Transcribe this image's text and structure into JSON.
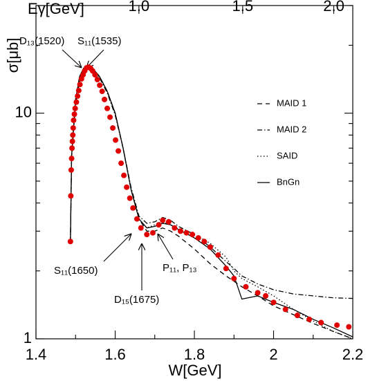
{
  "chart_data": {
    "type": "line",
    "x_label": "W[GeV]",
    "y_label": "σ[μb]",
    "x2_label": "Eγ[GeV]",
    "log_y": true,
    "xlim": [
      1.4,
      2.2
    ],
    "ylim": [
      1,
      30
    ],
    "xticks": [
      1.4,
      1.6,
      1.8,
      2,
      2.2
    ],
    "xminor_ticks": [
      1.5,
      1.7,
      1.9,
      2.1
    ],
    "yticks": [
      1,
      10
    ],
    "yminor_ticks": [
      2,
      3,
      4,
      5,
      6,
      7,
      8,
      9,
      20,
      30
    ],
    "x2ticks": [
      {
        "value": 1.66,
        "label": "1.0"
      },
      {
        "value": 1.922,
        "label": "1.5"
      },
      {
        "value": 2.152,
        "label": "2.0"
      }
    ],
    "x": [
      1.487,
      1.49,
      1.5,
      1.51,
      1.52,
      1.53,
      1.54,
      1.56,
      1.58,
      1.6,
      1.62,
      1.64,
      1.66,
      1.68,
      1.7,
      1.72,
      1.74,
      1.76,
      1.8,
      1.84,
      1.88,
      1.9,
      1.92,
      1.96,
      2.0,
      2.05,
      2.1,
      2.15,
      2.2
    ],
    "series": [
      {
        "name": "MAID 1",
        "style": "dashed",
        "color": "#000000",
        "values": [
          2.7,
          6.5,
          11.5,
          14.5,
          15.8,
          16.3,
          16.0,
          14.6,
          12.5,
          10.0,
          7.0,
          4.6,
          3.4,
          3.0,
          3.0,
          3.1,
          3.0,
          2.85,
          2.5,
          2.15,
          1.9,
          1.8,
          1.7,
          1.55,
          1.4,
          1.28,
          1.17,
          1.08,
          1.0
        ]
      },
      {
        "name": "MAID 2",
        "style": "dashdot",
        "color": "#000000",
        "values": [
          2.7,
          6.3,
          11.0,
          13.8,
          15.0,
          15.6,
          15.5,
          14.4,
          12.3,
          9.8,
          7.0,
          4.7,
          3.5,
          3.25,
          3.3,
          3.45,
          3.35,
          3.15,
          2.9,
          2.55,
          2.2,
          2.05,
          1.9,
          1.75,
          1.65,
          1.58,
          1.55,
          1.52,
          1.51
        ]
      },
      {
        "name": "SAID",
        "style": "dotted",
        "color": "#000000",
        "values": [
          2.7,
          6.5,
          11.5,
          14.5,
          15.8,
          16.3,
          16.0,
          14.6,
          12.5,
          10.0,
          7.0,
          4.6,
          3.4,
          3.1,
          3.2,
          3.3,
          3.2,
          3.05,
          2.9,
          2.65,
          2.3,
          2.0,
          1.85,
          1.7,
          1.55,
          1.35,
          1.2,
          1.08,
          1.0
        ]
      },
      {
        "name": "BnGn",
        "style": "solid",
        "color": "#000000",
        "values": [
          2.7,
          6.5,
          11.5,
          14.5,
          15.8,
          16.3,
          16.0,
          14.6,
          12.5,
          10.0,
          7.0,
          4.6,
          3.4,
          3.1,
          3.15,
          3.25,
          3.2,
          3.05,
          2.8,
          2.5,
          2.1,
          1.9,
          1.5,
          1.55,
          1.45,
          1.35,
          1.22,
          1.12,
          1.02
        ]
      }
    ],
    "points": {
      "color": "#e00000",
      "x": [
        1.487,
        1.488,
        1.489,
        1.49,
        1.491,
        1.492,
        1.493,
        1.494,
        1.495,
        1.497,
        1.499,
        1.502,
        1.505,
        1.508,
        1.511,
        1.515,
        1.519,
        1.523,
        1.528,
        1.533,
        1.538,
        1.543,
        1.549,
        1.555,
        1.561,
        1.567,
        1.573,
        1.58,
        1.587,
        1.594,
        1.601,
        1.608,
        1.615,
        1.622,
        1.629,
        1.637,
        1.645,
        1.655,
        1.665,
        1.68,
        1.695,
        1.71,
        1.72,
        1.735,
        1.75,
        1.765,
        1.78,
        1.795,
        1.81,
        1.825,
        1.84,
        1.86,
        1.88,
        1.9,
        1.93,
        1.96,
        1.98,
        2.0,
        2.03,
        2.06,
        2.09,
        2.12,
        2.16,
        2.19
      ],
      "values": [
        2.7,
        4.3,
        5.6,
        6.3,
        7.0,
        7.5,
        8.0,
        8.6,
        9.3,
        9.9,
        10.5,
        11.2,
        11.9,
        12.6,
        13.4,
        14.2,
        14.8,
        15.4,
        15.9,
        16.0,
        15.8,
        15.4,
        14.8,
        14.1,
        13.3,
        12.5,
        11.5,
        10.5,
        9.6,
        8.6,
        7.6,
        6.8,
        6.0,
        5.3,
        4.7,
        4.2,
        3.8,
        3.4,
        3.1,
        2.9,
        2.95,
        3.2,
        3.35,
        3.3,
        3.1,
        3.0,
        2.95,
        2.9,
        2.8,
        2.7,
        2.55,
        2.35,
        2.05,
        1.85,
        1.7,
        1.6,
        1.55,
        1.45,
        1.35,
        1.27,
        1.22,
        1.18,
        1.15,
        1.13
      ]
    },
    "annotations": [
      "D₁₃(1520)",
      "S₁₁(1535)",
      "S₁₁(1650)",
      "D₁₅(1675)",
      "P₁₁, P₁₃"
    ]
  }
}
